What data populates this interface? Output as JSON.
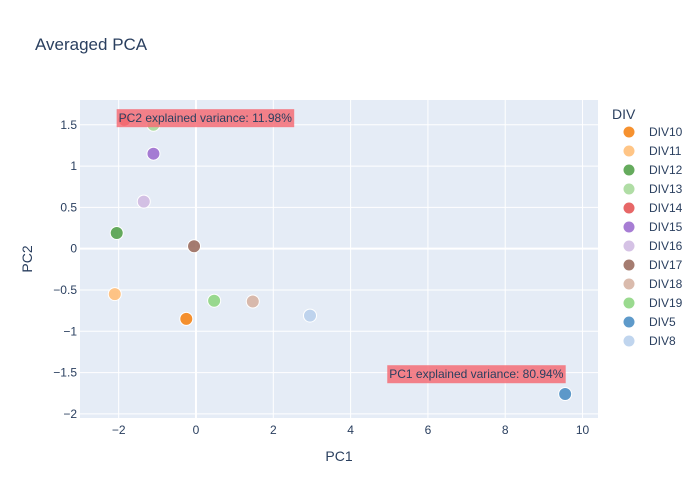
{
  "chart_data": {
    "type": "scatter",
    "title": "Averaged PCA",
    "xlabel": "PC1",
    "ylabel": "PC2",
    "xlim": [
      -3,
      10.4
    ],
    "ylim": [
      -2.05,
      1.8
    ],
    "xticks": [
      -2,
      0,
      2,
      4,
      6,
      8,
      10
    ],
    "yticks": [
      -2,
      -1.5,
      -1,
      -0.5,
      0,
      0.5,
      1,
      1.5
    ],
    "grid": true,
    "plot_background": "#e5ecf6",
    "legend": {
      "title": "DIV",
      "placement": "right"
    },
    "series": [
      {
        "name": "DIV10",
        "color": "#f58518",
        "points": [
          {
            "x": -0.25,
            "y": -0.85
          }
        ]
      },
      {
        "name": "DIV11",
        "color": "#ffbf79",
        "points": [
          {
            "x": -2.1,
            "y": -0.55
          }
        ]
      },
      {
        "name": "DIV12",
        "color": "#54a24b",
        "points": [
          {
            "x": -2.05,
            "y": 0.19
          }
        ]
      },
      {
        "name": "DIV13",
        "color": "#a7d99b",
        "points": [
          {
            "x": -1.1,
            "y": 1.5
          }
        ]
      },
      {
        "name": "DIV14",
        "color": "#e45756",
        "points": [
          {
            "x": -1.85,
            "y": 1.56
          }
        ]
      },
      {
        "name": "DIV15",
        "color": "#9d6fcf",
        "points": [
          {
            "x": -1.1,
            "y": 1.15
          }
        ]
      },
      {
        "name": "DIV16",
        "color": "#d0bbe2",
        "points": [
          {
            "x": -1.35,
            "y": 0.57
          }
        ]
      },
      {
        "name": "DIV17",
        "color": "#9b6e60",
        "points": [
          {
            "x": -0.05,
            "y": 0.03
          }
        ]
      },
      {
        "name": "DIV18",
        "color": "#d6b4a4",
        "points": [
          {
            "x": 1.47,
            "y": -0.64
          }
        ]
      },
      {
        "name": "DIV19",
        "color": "#8fd683",
        "points": [
          {
            "x": 0.47,
            "y": -0.63
          }
        ]
      },
      {
        "name": "DIV5",
        "color": "#4c8fc4",
        "points": [
          {
            "x": 9.55,
            "y": -1.76
          }
        ]
      },
      {
        "name": "DIV8",
        "color": "#b9d0ec",
        "points": [
          {
            "x": 2.95,
            "y": -0.81
          }
        ]
      }
    ],
    "annotations": [
      {
        "text": "PC2 explained variance: 11.98%",
        "x": -2,
        "y": 1.58,
        "bg": "#f46d75"
      },
      {
        "text": "PC1 explained variance: 80.94%",
        "x": 5,
        "y": -1.52,
        "bg": "#f46d75"
      }
    ]
  }
}
